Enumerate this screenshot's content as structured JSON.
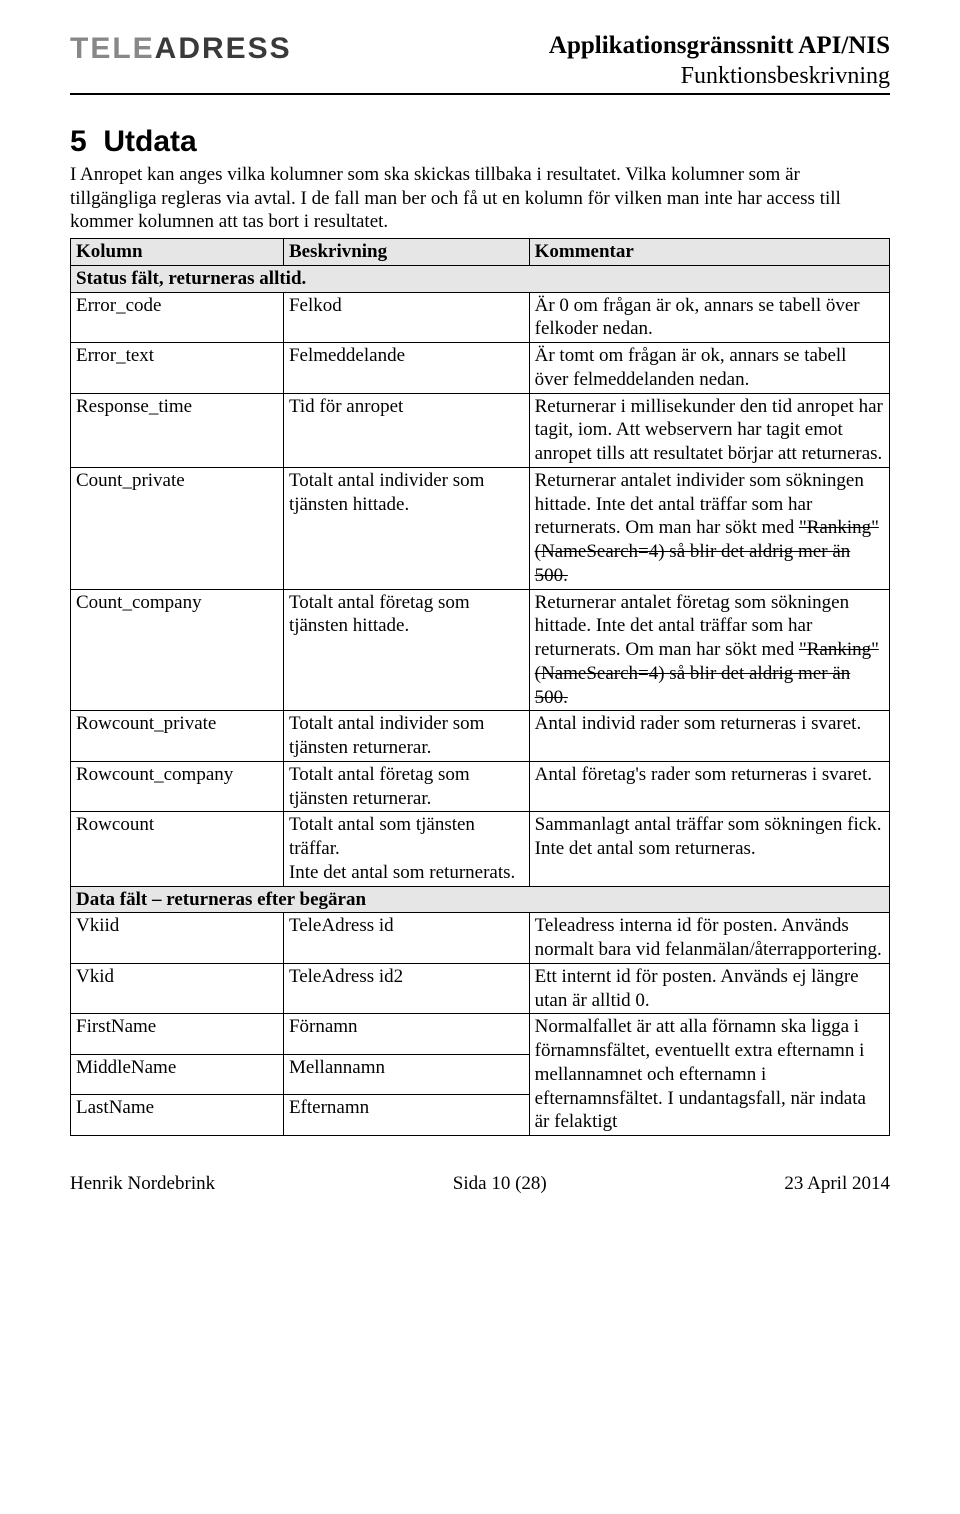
{
  "header": {
    "logo_html": "TELE<b>ADRESS</b>",
    "title": "Applikationsgränssnitt API/NIS",
    "subtitle": "Funktionsbeskrivning"
  },
  "section": {
    "number": "5",
    "title": "Utdata",
    "intro": "I Anropet kan anges vilka kolumner som ska skickas tillbaka i resultatet. Vilka kolumner som är tillgängliga regleras via avtal. I de fall man ber och få ut en kolumn för vilken man inte har access till kommer kolumnen att tas bort i resultatet."
  },
  "table": {
    "header": {
      "c1": "Kolumn",
      "c2": "Beskrivning",
      "c3": "Kommentar"
    },
    "section1": "Status fält, returneras alltid.",
    "rows1": [
      {
        "c1": "Error_code",
        "c2": "Felkod",
        "c3": "Är 0 om frågan är ok, annars se tabell över felkoder nedan."
      },
      {
        "c1": "Error_text",
        "c2": "Felmeddelande",
        "c3": "Är tomt om frågan är ok, annars se tabell över felmeddelanden nedan."
      },
      {
        "c1": "Response_time",
        "c2": "Tid för anropet",
        "c3": "Returnerar i millisekunder den tid anropet har tagit, iom. Att webservern har tagit emot anropet tills att resultatet börjar att returneras."
      },
      {
        "c1": "Count_private",
        "c2": "Totalt antal individer som tjänsten hittade.",
        "c3_html": "Returnerar antalet individer som sökningen hittade. Inte det antal träffar som har returnerats. Om man har sökt med <span class=\"strike\">\"Ranking\"(NameSearch=4) så blir det aldrig mer än 500.</span>"
      },
      {
        "c1": "Count_company",
        "c2": "Totalt antal företag som tjänsten hittade.",
        "c3_html": "Returnerar antalet företag som sökningen hittade. Inte det antal träffar som har returnerats. Om man har sökt med <span class=\"strike\">\"Ranking\"(NameSearch=4) så blir det aldrig mer än 500.</span>"
      },
      {
        "c1": "Rowcount_private",
        "c2": "Totalt antal individer som tjänsten returnerar.",
        "c3": "Antal individ rader som returneras i svaret."
      },
      {
        "c1": "Rowcount_company",
        "c2": "Totalt antal företag som tjänsten returnerar.",
        "c3": "Antal företag's rader som returneras i svaret."
      },
      {
        "c1": "Rowcount",
        "c2": "Totalt antal som tjänsten träffar.\nInte det antal som returnerats.",
        "c3": "Sammanlagt antal träffar som sökningen fick. Inte det antal som returneras."
      }
    ],
    "section2": "Data fält – returneras efter begäran",
    "rows2": [
      {
        "c1": "Vkiid",
        "c2": "TeleAdress id",
        "c3": "Teleadress interna id för posten. Används normalt bara vid felanmälan/återrapportering."
      },
      {
        "c1": "Vkid",
        "c2": "TeleAdress id2",
        "c3": "Ett internt id för posten. Används ej längre utan är alltid 0."
      }
    ],
    "name_group": {
      "rows": [
        {
          "c1": "FirstName",
          "c2": "Förnamn"
        },
        {
          "c1": "MiddleName",
          "c2": "Mellannamn"
        },
        {
          "c1": "LastName",
          "c2": "Efternamn"
        }
      ],
      "c3": "Normalfallet är att alla förnamn ska ligga i förnamnsfältet, eventuellt extra efternamn i mellannamnet och efternamn i efternamnsfältet. I undantagsfall, när indata är felaktigt"
    }
  },
  "footer": {
    "left": "Henrik Nordebrink",
    "center": "Sida 10 (28)",
    "right": "23 April 2014"
  }
}
